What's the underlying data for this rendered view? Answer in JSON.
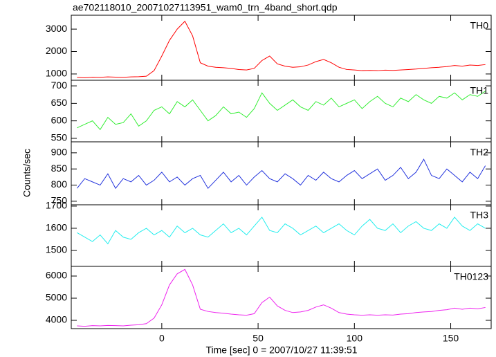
{
  "chart_data": {
    "type": "line",
    "title": "ae702118010_20071027113951_wam0_trn_4band_short.qdp",
    "xlabel": "Time [sec] 0 = 2007/10/27 11:39:51",
    "ylabel": "Counts/sec",
    "xlim": [
      -47,
      171
    ],
    "xticks": [
      0,
      50,
      100,
      150
    ],
    "x": [
      -44,
      -40,
      -36,
      -32,
      -28,
      -24,
      -20,
      -16,
      -12,
      -8,
      -4,
      0,
      4,
      8,
      12,
      16,
      20,
      24,
      28,
      32,
      36,
      40,
      44,
      48,
      52,
      56,
      60,
      64,
      68,
      72,
      76,
      80,
      84,
      88,
      92,
      96,
      100,
      104,
      108,
      112,
      116,
      120,
      124,
      128,
      132,
      136,
      140,
      144,
      148,
      152,
      156,
      160,
      164,
      168
    ],
    "panels": [
      {
        "ylim": [
          720,
          3620
        ],
        "yticks": [
          1000,
          2000,
          3000
        ],
        "series": [
          {
            "name": "TH0",
            "color": "#ff0000",
            "values": [
              850,
              830,
              860,
              850,
              870,
              860,
              850,
              870,
              880,
              900,
              1150,
              1800,
              2500,
              3000,
              3350,
              2700,
              1500,
              1350,
              1300,
              1280,
              1250,
              1200,
              1180,
              1250,
              1600,
              1800,
              1450,
              1350,
              1300,
              1320,
              1400,
              1550,
              1650,
              1500,
              1300,
              1200,
              1180,
              1150,
              1160,
              1150,
              1170,
              1160,
              1180,
              1200,
              1220,
              1250,
              1280,
              1300,
              1330,
              1380,
              1350,
              1400,
              1380,
              1420
            ]
          }
        ]
      },
      {
        "ylim": [
          540,
          716
        ],
        "yticks": [
          550,
          600,
          650,
          700
        ],
        "series": [
          {
            "name": "TH1",
            "color": "#33ee33",
            "values": [
              580,
              590,
              600,
              575,
              610,
              590,
              595,
              620,
              585,
              600,
              630,
              640,
              620,
              655,
              640,
              660,
              630,
              600,
              615,
              640,
              620,
              625,
              610,
              635,
              680,
              650,
              630,
              645,
              660,
              640,
              630,
              655,
              645,
              665,
              640,
              650,
              660,
              635,
              655,
              670,
              650,
              640,
              665,
              655,
              675,
              660,
              650,
              670,
              665,
              680,
              660,
              675,
              670,
              685
            ]
          }
        ]
      },
      {
        "ylim": [
          739,
          934
        ],
        "yticks": [
          750,
          800,
          850,
          900
        ],
        "series": [
          {
            "name": "TH2",
            "color": "#2233dd",
            "values": [
              790,
              820,
              810,
              800,
              835,
              790,
              820,
              810,
              830,
              800,
              815,
              840,
              810,
              825,
              800,
              820,
              830,
              790,
              815,
              840,
              810,
              830,
              800,
              825,
              845,
              820,
              810,
              835,
              820,
              800,
              830,
              815,
              840,
              820,
              810,
              830,
              845,
              820,
              835,
              850,
              815,
              830,
              855,
              820,
              840,
              880,
              830,
              820,
              850,
              830,
              810,
              840,
              820,
              860
            ]
          }
        ]
      },
      {
        "ylim": [
          1428,
          1706
        ],
        "yticks": [
          1500,
          1600,
          1700
        ],
        "series": [
          {
            "name": "TH3",
            "color": "#22eeee",
            "values": [
              1580,
              1560,
              1540,
              1570,
              1530,
              1590,
              1560,
              1550,
              1580,
              1600,
              1570,
              1590,
              1560,
              1610,
              1580,
              1600,
              1570,
              1560,
              1590,
              1620,
              1580,
              1600,
              1570,
              1610,
              1650,
              1590,
              1580,
              1620,
              1600,
              1570,
              1590,
              1610,
              1580,
              1600,
              1620,
              1590,
              1570,
              1610,
              1640,
              1600,
              1590,
              1620,
              1580,
              1610,
              1630,
              1600,
              1590,
              1620,
              1600,
              1650,
              1610,
              1590,
              1620,
              1600
            ]
          }
        ]
      },
      {
        "ylim": [
          3625,
          6437
        ],
        "yticks": [
          4000,
          5000,
          6000
        ],
        "series": [
          {
            "name": "TH0123",
            "color": "#ee22ee",
            "values": [
              3750,
              3730,
              3760,
              3750,
              3770,
              3760,
              3750,
              3780,
              3800,
              3850,
              4100,
              4700,
              5600,
              6100,
              6300,
              5600,
              4500,
              4400,
              4350,
              4320,
              4280,
              4250,
              4230,
              4300,
              4800,
              5050,
              4650,
              4450,
              4350,
              4380,
              4450,
              4600,
              4700,
              4550,
              4350,
              4280,
              4250,
              4230,
              4250,
              4230,
              4250,
              4240,
              4280,
              4300,
              4350,
              4380,
              4400,
              4450,
              4480,
              4550,
              4500,
              4550,
              4520,
              4580
            ]
          }
        ]
      }
    ]
  }
}
